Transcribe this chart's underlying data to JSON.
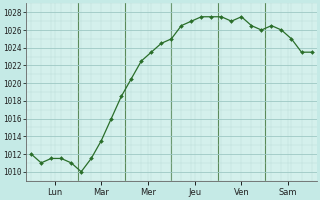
{
  "background_color": "#c5eae6",
  "plot_bg_color": "#d4f0ec",
  "line_color": "#2a6e2a",
  "marker_color": "#2a6e2a",
  "ylim": [
    1009,
    1029
  ],
  "ytick_step": 2,
  "day_labels": [
    "Lun",
    "Mar",
    "Mer",
    "Jeu",
    "Ven",
    "Sam"
  ],
  "x_values": [
    0,
    1,
    2,
    3,
    4,
    5,
    6,
    7,
    8,
    9,
    10,
    11,
    12,
    13,
    14,
    15,
    16,
    17,
    18,
    19,
    20,
    21,
    22,
    23,
    24,
    25,
    26,
    27,
    28
  ],
  "y_values": [
    1012,
    1011,
    1011.5,
    1011.5,
    1011,
    1010,
    1011.5,
    1013.5,
    1016,
    1018.5,
    1020.5,
    1022.5,
    1023.5,
    1024.5,
    1025,
    1026.5,
    1027,
    1027.5,
    1027.5,
    1027.5,
    1027,
    1027.5,
    1026.5,
    1026,
    1026.5,
    1026,
    1025,
    1023.5,
    1023.5
  ],
  "n_points": 29,
  "yticks": [
    1010,
    1012,
    1014,
    1016,
    1018,
    1020,
    1022,
    1024,
    1026,
    1028
  ],
  "grid_color": "#b8d8d4",
  "grid_major_color": "#9ec8c4",
  "separator_color": "#5a8a5a"
}
